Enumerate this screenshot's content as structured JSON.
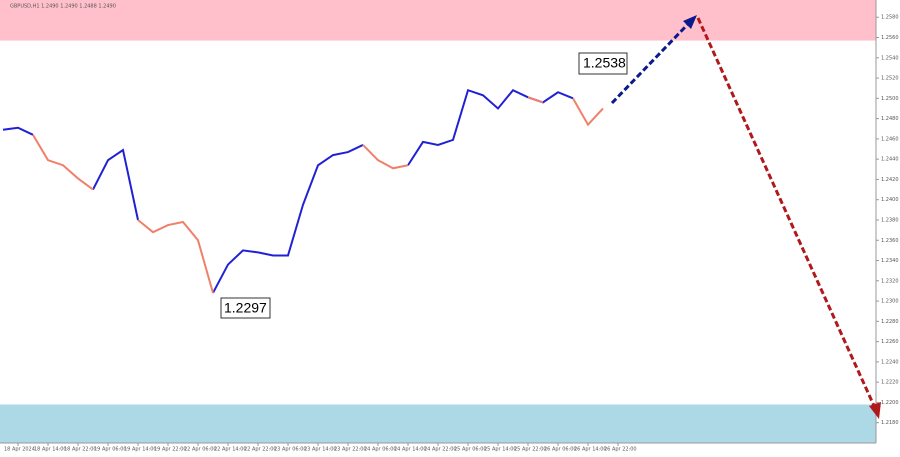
{
  "chart_data": {
    "type": "line",
    "title": "GBPUSD,H1 1.2490 1.2490 1.2488 1.2490",
    "categories": [
      null,
      "18 Apr 2024",
      null,
      "18 Apr 14:00",
      null,
      "18 Apr 22:00",
      null,
      "19 Apr 06:00",
      null,
      "19 Apr 14:00",
      null,
      "19 Apr 22:00",
      null,
      "22 Apr 06:00",
      null,
      "22 Apr 14:00",
      null,
      "22 Apr 22:00",
      null,
      "23 Apr 06:00",
      null,
      "23 Apr 14:00",
      null,
      "23 Apr 22:00",
      null,
      "24 Apr 06:00",
      null,
      "24 Apr 14:00",
      null,
      "24 Apr 22:00",
      null,
      "25 Apr 06:00",
      null,
      "25 Apr 14:00",
      null,
      "25 Apr 22:00",
      null,
      "26 Apr 06:00",
      null,
      "26 Apr 14:00",
      null,
      "26 Apr 22:00"
    ],
    "series": [
      {
        "color": "#2121d4",
        "values": [
          1.2469,
          1.2471,
          1.2464,
          null,
          null,
          null,
          1.241,
          1.2439,
          1.2449,
          1.238,
          null,
          null,
          null,
          null,
          1.2308,
          1.2336,
          1.235,
          1.2348,
          1.2345,
          1.2345,
          1.2395,
          1.2434,
          1.2444,
          1.2447,
          1.2454,
          null,
          null,
          1.2434,
          1.2457,
          1.2454,
          1.2459,
          1.2508,
          1.2503,
          1.249,
          1.2508,
          1.2501,
          1.2496,
          1.2506,
          1.25,
          null,
          null,
          null
        ]
      },
      {
        "color": "#f0806a",
        "values": [
          null,
          null,
          1.2464,
          1.2439,
          1.2434,
          1.2421,
          1.241,
          null,
          null,
          1.238,
          1.2368,
          1.2375,
          1.2378,
          1.236,
          1.2308,
          null,
          null,
          null,
          null,
          null,
          null,
          null,
          null,
          null,
          1.2454,
          1.2439,
          1.2431,
          1.2434,
          null,
          null,
          null,
          null,
          null,
          null,
          null,
          1.2501,
          1.2496,
          null,
          1.25,
          1.2474,
          1.249,
          null
        ]
      }
    ],
    "zones": [
      {
        "from": 1.2557,
        "to": 1.2597,
        "color": "#ffc0cb"
      },
      {
        "from": 1.216,
        "to": 1.2198,
        "color": "#add8e6"
      }
    ],
    "ylim": [
      1.216,
      1.2597
    ],
    "yticks": [
      {
        "value": 1.258,
        "label": "1.2580"
      },
      {
        "value": 1.256,
        "label": "1.2560"
      },
      {
        "value": 1.254,
        "label": "1.2540"
      },
      {
        "value": 1.252,
        "label": "1.2520"
      },
      {
        "value": 1.25,
        "label": "1.2500"
      },
      {
        "value": 1.248,
        "label": "1.2480"
      },
      {
        "value": 1.246,
        "label": "1.2460"
      },
      {
        "value": 1.244,
        "label": "1.2440"
      },
      {
        "value": 1.242,
        "label": "1.2420"
      },
      {
        "value": 1.24,
        "label": "1.2400"
      },
      {
        "value": 1.238,
        "label": "1.2380"
      },
      {
        "value": 1.236,
        "label": "1.2360"
      },
      {
        "value": 1.234,
        "label": "1.2340"
      },
      {
        "value": 1.232,
        "label": "1.2320"
      },
      {
        "value": 1.23,
        "label": "1.2300"
      },
      {
        "value": 1.228,
        "label": "1.2280"
      },
      {
        "value": 1.226,
        "label": "1.2260"
      },
      {
        "value": 1.224,
        "label": "1.2240"
      },
      {
        "value": 1.222,
        "label": "1.2220"
      },
      {
        "value": 1.22,
        "label": "1.2200"
      },
      {
        "value": 1.218,
        "label": "1.2180"
      }
    ],
    "annotations": [
      {
        "text": "1.2538"
      },
      {
        "text": "1.2297"
      }
    ]
  }
}
